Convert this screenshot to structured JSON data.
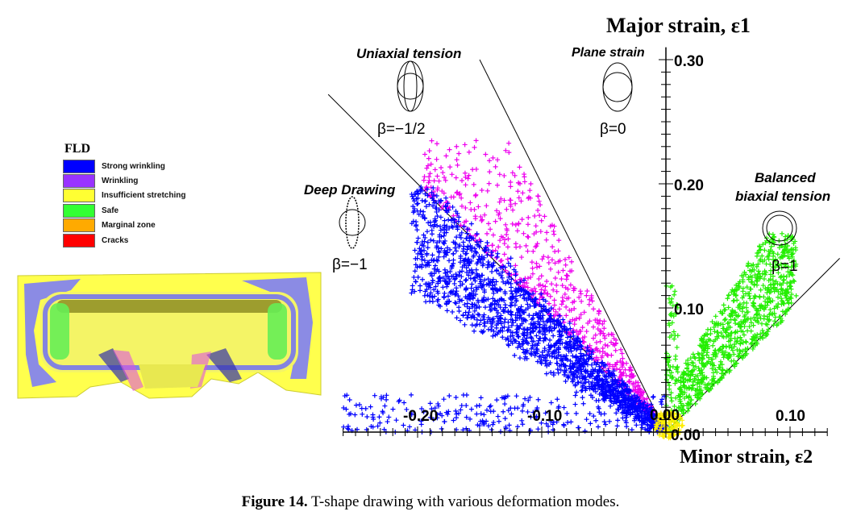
{
  "caption": {
    "label": "Figure 14.",
    "text": "T-shape drawing with various deformation modes."
  },
  "legend": {
    "title": "FLD",
    "items": [
      {
        "label": "Strong wrinkling",
        "color": "#0000ff"
      },
      {
        "label": "Wrinkling",
        "color": "#9933ff"
      },
      {
        "label": "Insufficient stretching",
        "color": "#ffff33"
      },
      {
        "label": "Safe",
        "color": "#33ff33"
      },
      {
        "label": "Marginal zone",
        "color": "#ffaa00"
      },
      {
        "label": "Cracks",
        "color": "#ff0000"
      }
    ]
  },
  "chart_data": {
    "type": "scatter",
    "title": "",
    "ylabel": "Major strain, ε1",
    "xlabel": "Minor strain, ε2",
    "xlim": [
      -0.26,
      0.13
    ],
    "ylim": [
      0.0,
      0.31
    ],
    "y_ticks": [
      {
        "value": 0.3,
        "label": "0.30"
      },
      {
        "value": 0.2,
        "label": "0.20"
      },
      {
        "value": 0.1,
        "label": "0.10"
      },
      {
        "value": 0.0,
        "label": "0.00"
      }
    ],
    "x_ticks": [
      {
        "value": -0.2,
        "label": "-0.20"
      },
      {
        "value": -0.1,
        "label": "-0.10"
      },
      {
        "value": 0.0,
        "label": "0.00"
      },
      {
        "value": 0.1,
        "label": "0.10"
      }
    ],
    "reference_lines": [
      {
        "name": "Deep Drawing",
        "beta": "β=−1",
        "slope": -1
      },
      {
        "name": "Uniaxial tension",
        "beta": "β=−1/2",
        "slope": -2
      },
      {
        "name": "Plane strain",
        "beta": "β=0",
        "slope": null
      },
      {
        "name": "Balanced biaxial tension",
        "beta": "β=1",
        "slope": 1
      }
    ],
    "annotations": {
      "deep_drawing": "Deep Drawing",
      "deep_drawing_beta": "β=−1",
      "uniaxial": "Uniaxial tension",
      "uniaxial_beta": "β=−1/2",
      "plane": "Plane strain",
      "plane_beta": "β=0",
      "balanced_1": "Balanced",
      "balanced_2": "biaxial tension",
      "balanced_beta": "β=1"
    },
    "series": [
      {
        "name": "Strong wrinkling",
        "color": "#0000ff",
        "marker": "+"
      },
      {
        "name": "Wrinkling",
        "color": "#ee00ee",
        "marker": "+"
      },
      {
        "name": "Insufficient stretching",
        "color": "#ffee00",
        "marker": "+"
      },
      {
        "name": "Safe",
        "color": "#22ee00",
        "marker": "+"
      }
    ]
  }
}
